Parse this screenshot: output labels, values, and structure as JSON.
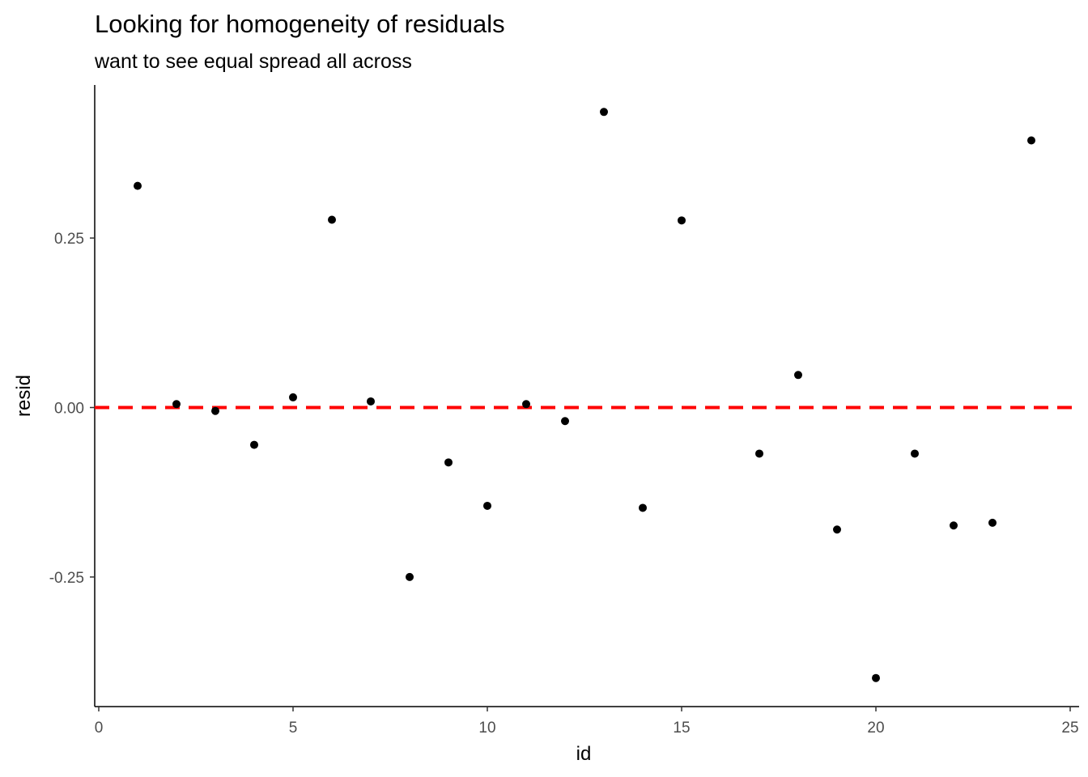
{
  "chart_data": {
    "type": "scatter",
    "title": "Looking for homogeneity of residuals",
    "subtitle": "want to see equal spread all across",
    "xlabel": "id",
    "ylabel": "resid",
    "xlim": [
      0,
      25
    ],
    "ylim": [
      -0.42,
      0.47
    ],
    "x_ticks": [
      0,
      5,
      10,
      15,
      20,
      25
    ],
    "y_ticks": [
      0.25,
      0.0,
      -0.25
    ],
    "y_tick_labels": [
      "0.25",
      "0.00",
      "-0.25"
    ],
    "grid": false,
    "points": {
      "x": [
        1,
        2,
        3,
        4,
        5,
        6,
        7,
        8,
        9,
        10,
        11,
        12,
        13,
        14,
        15,
        17,
        18,
        19,
        20,
        21,
        22,
        23,
        24
      ],
      "y": [
        0.327,
        0.005,
        -0.005,
        -0.055,
        0.015,
        0.277,
        0.009,
        -0.25,
        -0.081,
        -0.145,
        0.005,
        -0.02,
        0.436,
        -0.148,
        0.276,
        -0.068,
        0.048,
        -0.18,
        -0.399,
        -0.068,
        -0.174,
        -0.17,
        0.394
      ]
    },
    "reference_line": {
      "y": 0,
      "color": "#ff0000",
      "style": "dashed"
    },
    "point_color": "#000000"
  }
}
